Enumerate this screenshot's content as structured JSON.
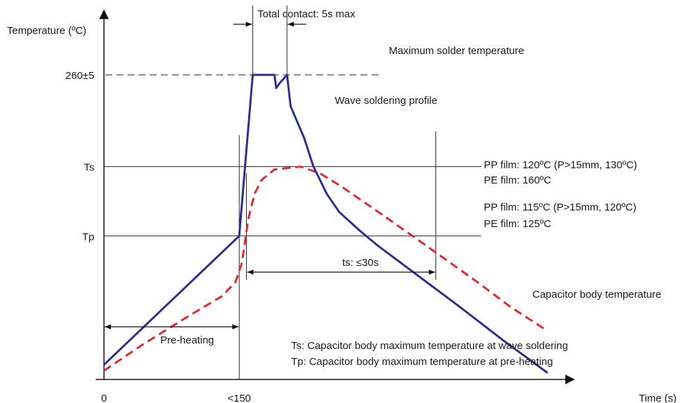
{
  "chart_data": {
    "type": "line",
    "title": "",
    "xlabel": "Time (s)",
    "ylabel": "Temperature (ºC)",
    "x_ticks": [
      "0",
      "<150"
    ],
    "y_ticks": [
      "260±5",
      "Ts",
      "Tp"
    ],
    "grid": false,
    "legend": "none",
    "series": [
      {
        "name": "Wave soldering profile",
        "color": "#2d2f8c",
        "style": "solid",
        "points": [
          [
            0,
            0.04
          ],
          [
            150,
            0.391
          ],
          [
            165,
            0.83
          ],
          [
            189,
            0.83
          ],
          [
            191,
            0.794
          ],
          [
            195,
            0.808
          ],
          [
            203,
            0.83
          ],
          [
            207,
            0.744
          ],
          [
            222,
            0.658
          ],
          [
            232,
            0.582
          ],
          [
            247,
            0.506
          ],
          [
            261,
            0.456
          ],
          [
            284,
            0.405
          ],
          [
            304,
            0.364
          ],
          [
            322,
            0.331
          ],
          [
            395,
            0.197
          ],
          [
            443,
            0.106
          ],
          [
            492,
            0.018
          ]
        ]
      },
      {
        "name": "Capacitor body temperature",
        "color": "#e02a2e",
        "style": "dashed",
        "points": [
          [
            0,
            0.024
          ],
          [
            43,
            0.095
          ],
          [
            94,
            0.173
          ],
          [
            131,
            0.227
          ],
          [
            146,
            0.266
          ],
          [
            153,
            0.318
          ],
          [
            160,
            0.436
          ],
          [
            167,
            0.506
          ],
          [
            175,
            0.544
          ],
          [
            189,
            0.572
          ],
          [
            218,
            0.58
          ],
          [
            240,
            0.561
          ],
          [
            262,
            0.528
          ],
          [
            304,
            0.457
          ],
          [
            364,
            0.353
          ],
          [
            416,
            0.262
          ],
          [
            450,
            0.199
          ],
          [
            492,
            0.132
          ]
        ]
      }
    ],
    "annotations": {
      "total_contact": "Total contact: 5s max",
      "max_temp": "Maximum solder temperature",
      "wave_label": "Wave soldering profile",
      "pp_ts": "PP film: 120ºC  (P>15mm, 130ºC)",
      "pe_ts": "PE film: 160ºC",
      "pp_tp": "PP film: 115ºC (P>15mm, 120ºC)",
      "pe_tp": "PE film: 125ºC",
      "ts_span": "ts: ≤30s",
      "preheat": "Pre-heating",
      "cap_label": "Capacitor body temperature",
      "note_ts": "Ts: Capacitor body maximum temperature at wave soldering",
      "note_tp": "Tp: Capacitor body maximum temperature at pre-heating"
    },
    "levels": {
      "max": 0.83,
      "ts": 0.58,
      "tp": 0.391
    },
    "markers": {
      "contact_start": 165,
      "contact_end": 203,
      "ts_start": 158,
      "ts_end": 368
    }
  }
}
